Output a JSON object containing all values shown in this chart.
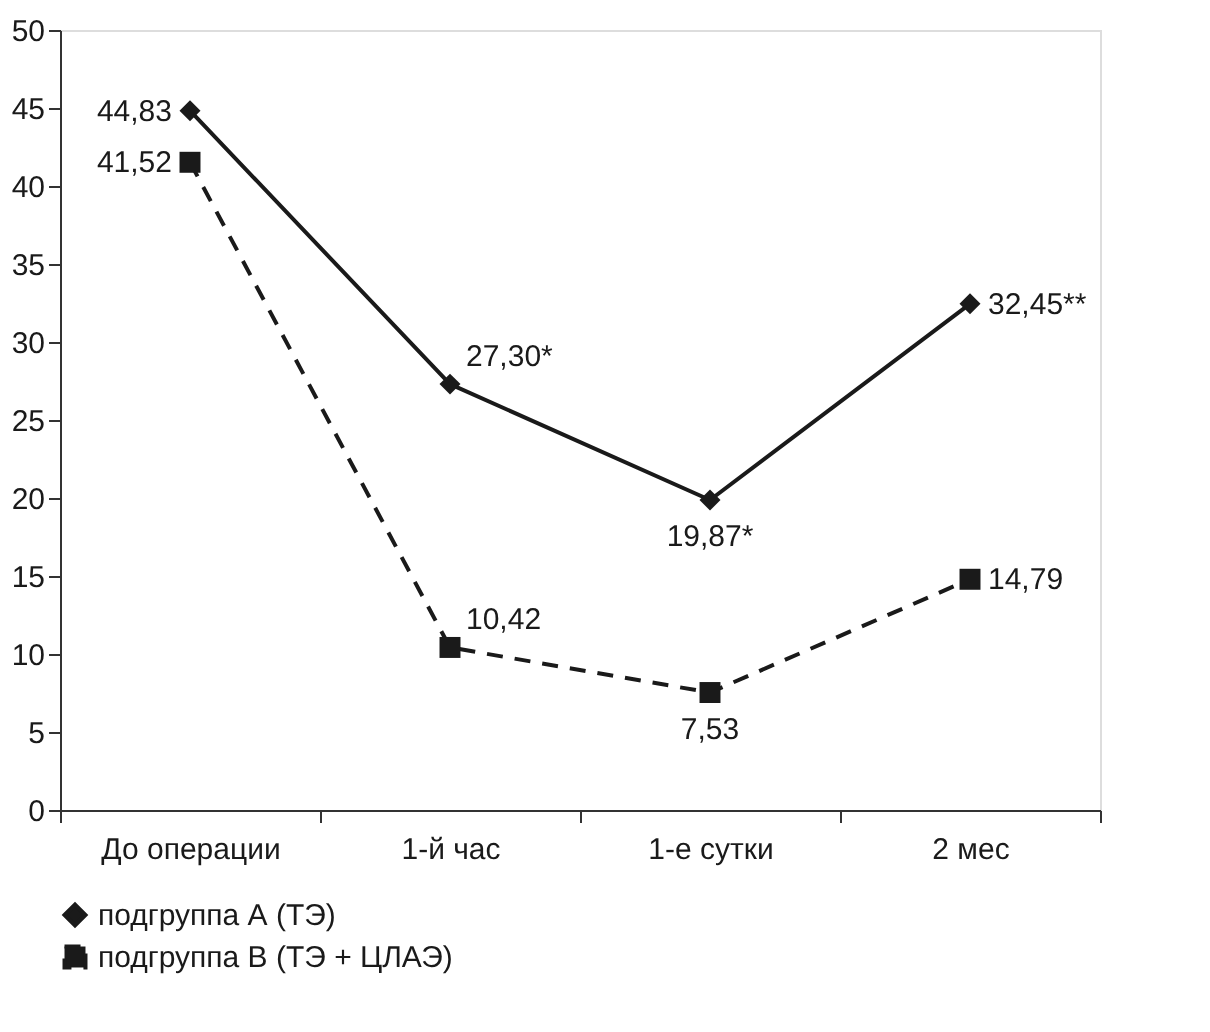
{
  "chart_data": {
    "type": "line",
    "categories": [
      "До операции",
      "1-й час",
      "1-е сутки",
      "2 мес"
    ],
    "series": [
      {
        "name": "подгруппа А (ТЭ)",
        "color": "#1a1a1a",
        "marker": "diamond",
        "line_style": "solid",
        "values": [
          44.83,
          27.3,
          19.87,
          32.45
        ],
        "value_labels": [
          "44,83",
          "27,30*",
          "19,87*",
          "32,45**"
        ]
      },
      {
        "name": "подгруппа В (ТЭ + ЦЛАЭ)",
        "color": "#1a1a1a",
        "marker": "square",
        "line_style": "dashed",
        "values": [
          41.52,
          10.42,
          7.53,
          14.79
        ],
        "value_labels": [
          "41,52",
          "10,42",
          "7,53",
          "14,79"
        ]
      }
    ],
    "ylim": [
      0,
      50
    ],
    "yticks": [
      0,
      5,
      10,
      15,
      20,
      25,
      30,
      35,
      40,
      45,
      50
    ],
    "grid": false,
    "legend": "bottom"
  }
}
